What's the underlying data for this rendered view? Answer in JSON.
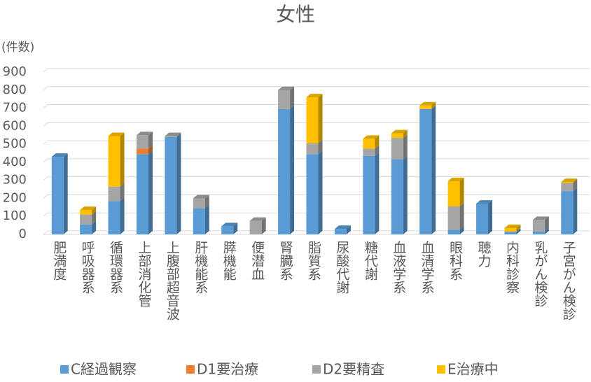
{
  "chart_data": {
    "type": "bar3d_stacked",
    "title": "女性",
    "y_label": "(件数)",
    "categories": [
      "肥満度",
      "呼吸器系",
      "循環器系",
      "上部消化管",
      "上腹部超音波",
      "肝機能系",
      "膵機能",
      "便潜血",
      "腎臓系",
      "脂質系",
      "尿酸代謝",
      "糖代謝",
      "血液学系",
      "血清学系",
      "眼科系",
      "聴力",
      "内科診察",
      "乳がん検診",
      "子宮がん検診"
    ],
    "series": [
      {
        "name": "C経過観察",
        "color": "#5b9bd5",
        "values": [
          430,
          55,
          185,
          445,
          540,
          145,
          45,
          0,
          695,
          445,
          30,
          435,
          415,
          695,
          25,
          170,
          15,
          15,
          240
        ]
      },
      {
        "name": "D1要治療",
        "color": "#ed7d31",
        "values": [
          0,
          0,
          0,
          30,
          0,
          0,
          0,
          0,
          0,
          0,
          0,
          0,
          0,
          0,
          0,
          0,
          0,
          0,
          0
        ]
      },
      {
        "name": "D2要精査",
        "color": "#a5a5a5",
        "values": [
          0,
          55,
          80,
          75,
          5,
          55,
          0,
          75,
          105,
          60,
          0,
          40,
          120,
          0,
          130,
          0,
          0,
          65,
          45
        ]
      },
      {
        "name": "E治療中",
        "color": "#ffc000",
        "values": [
          0,
          25,
          280,
          0,
          0,
          0,
          0,
          0,
          0,
          255,
          0,
          55,
          25,
          20,
          140,
          0,
          20,
          0,
          5
        ]
      }
    ],
    "ylim": [
      0,
      900
    ],
    "yticks": [
      0,
      100,
      200,
      300,
      400,
      500,
      600,
      700,
      800,
      900
    ],
    "grid": true
  }
}
